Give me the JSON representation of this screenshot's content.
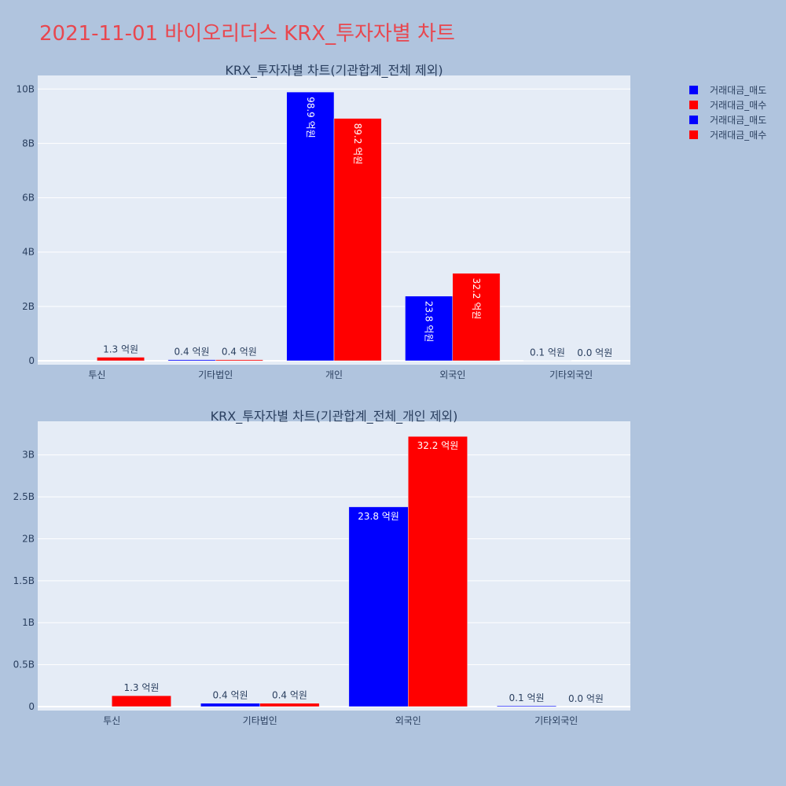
{
  "title": "2021-11-01 바이오리더스 KRX_투자자별 차트",
  "colors": {
    "sell": "#0000ff",
    "buy": "#ff0000",
    "plot_bg": "#e5ecf6",
    "page_bg": "#b0c4de"
  },
  "legend": [
    "거래대금_매도",
    "거래대금_매수",
    "거래대금_매도",
    "거래대금_매수"
  ],
  "chart_data": [
    {
      "type": "bar",
      "title": "KRX_투자자별 차트(기관합계_전체 제외)",
      "categories": [
        "투신",
        "기타법인",
        "개인",
        "외국인",
        "기타외국인"
      ],
      "series": [
        {
          "name": "거래대금_매도",
          "color": "#0000ff",
          "values": [
            0,
            40000000,
            9890000000,
            2380000000,
            10000000
          ],
          "labels": [
            "",
            "0.4 억원",
            "98.9 억원",
            "23.8 억원",
            "0.1 억원"
          ]
        },
        {
          "name": "거래대금_매수",
          "color": "#ff0000",
          "values": [
            130000000,
            40000000,
            8920000000,
            3220000000,
            0
          ],
          "labels": [
            "1.3 억원",
            "0.4 억원",
            "89.2 억원",
            "32.2 억원",
            "0.0 억원"
          ]
        }
      ],
      "ylim": [
        0,
        10500000000
      ],
      "yticks": [
        0,
        2000000000,
        4000000000,
        6000000000,
        8000000000,
        10000000000
      ],
      "ytick_labels": [
        "0",
        "2B",
        "4B",
        "6B",
        "8B",
        "10B"
      ],
      "label_orientation": "vertical",
      "grid": true
    },
    {
      "type": "bar",
      "title": "KRX_투자자별 차트(기관합계_전체_개인 제외)",
      "categories": [
        "투신",
        "기타법인",
        "외국인",
        "기타외국인"
      ],
      "series": [
        {
          "name": "거래대금_매도",
          "color": "#0000ff",
          "values": [
            0,
            40000000,
            2380000000,
            10000000
          ],
          "labels": [
            "",
            "0.4 억원",
            "23.8 억원",
            "0.1 억원"
          ]
        },
        {
          "name": "거래대금_매수",
          "color": "#ff0000",
          "values": [
            130000000,
            40000000,
            3220000000,
            0
          ],
          "labels": [
            "1.3 억원",
            "0.4 억원",
            "32.2 억원",
            "0.0 억원"
          ]
        }
      ],
      "ylim": [
        0,
        3400000000
      ],
      "yticks": [
        0,
        500000000,
        1000000000,
        1500000000,
        2000000000,
        2500000000,
        3000000000
      ],
      "ytick_labels": [
        "0",
        "0.5B",
        "1B",
        "1.5B",
        "2B",
        "2.5B",
        "3B"
      ],
      "label_orientation": "horizontal",
      "grid": true
    }
  ]
}
